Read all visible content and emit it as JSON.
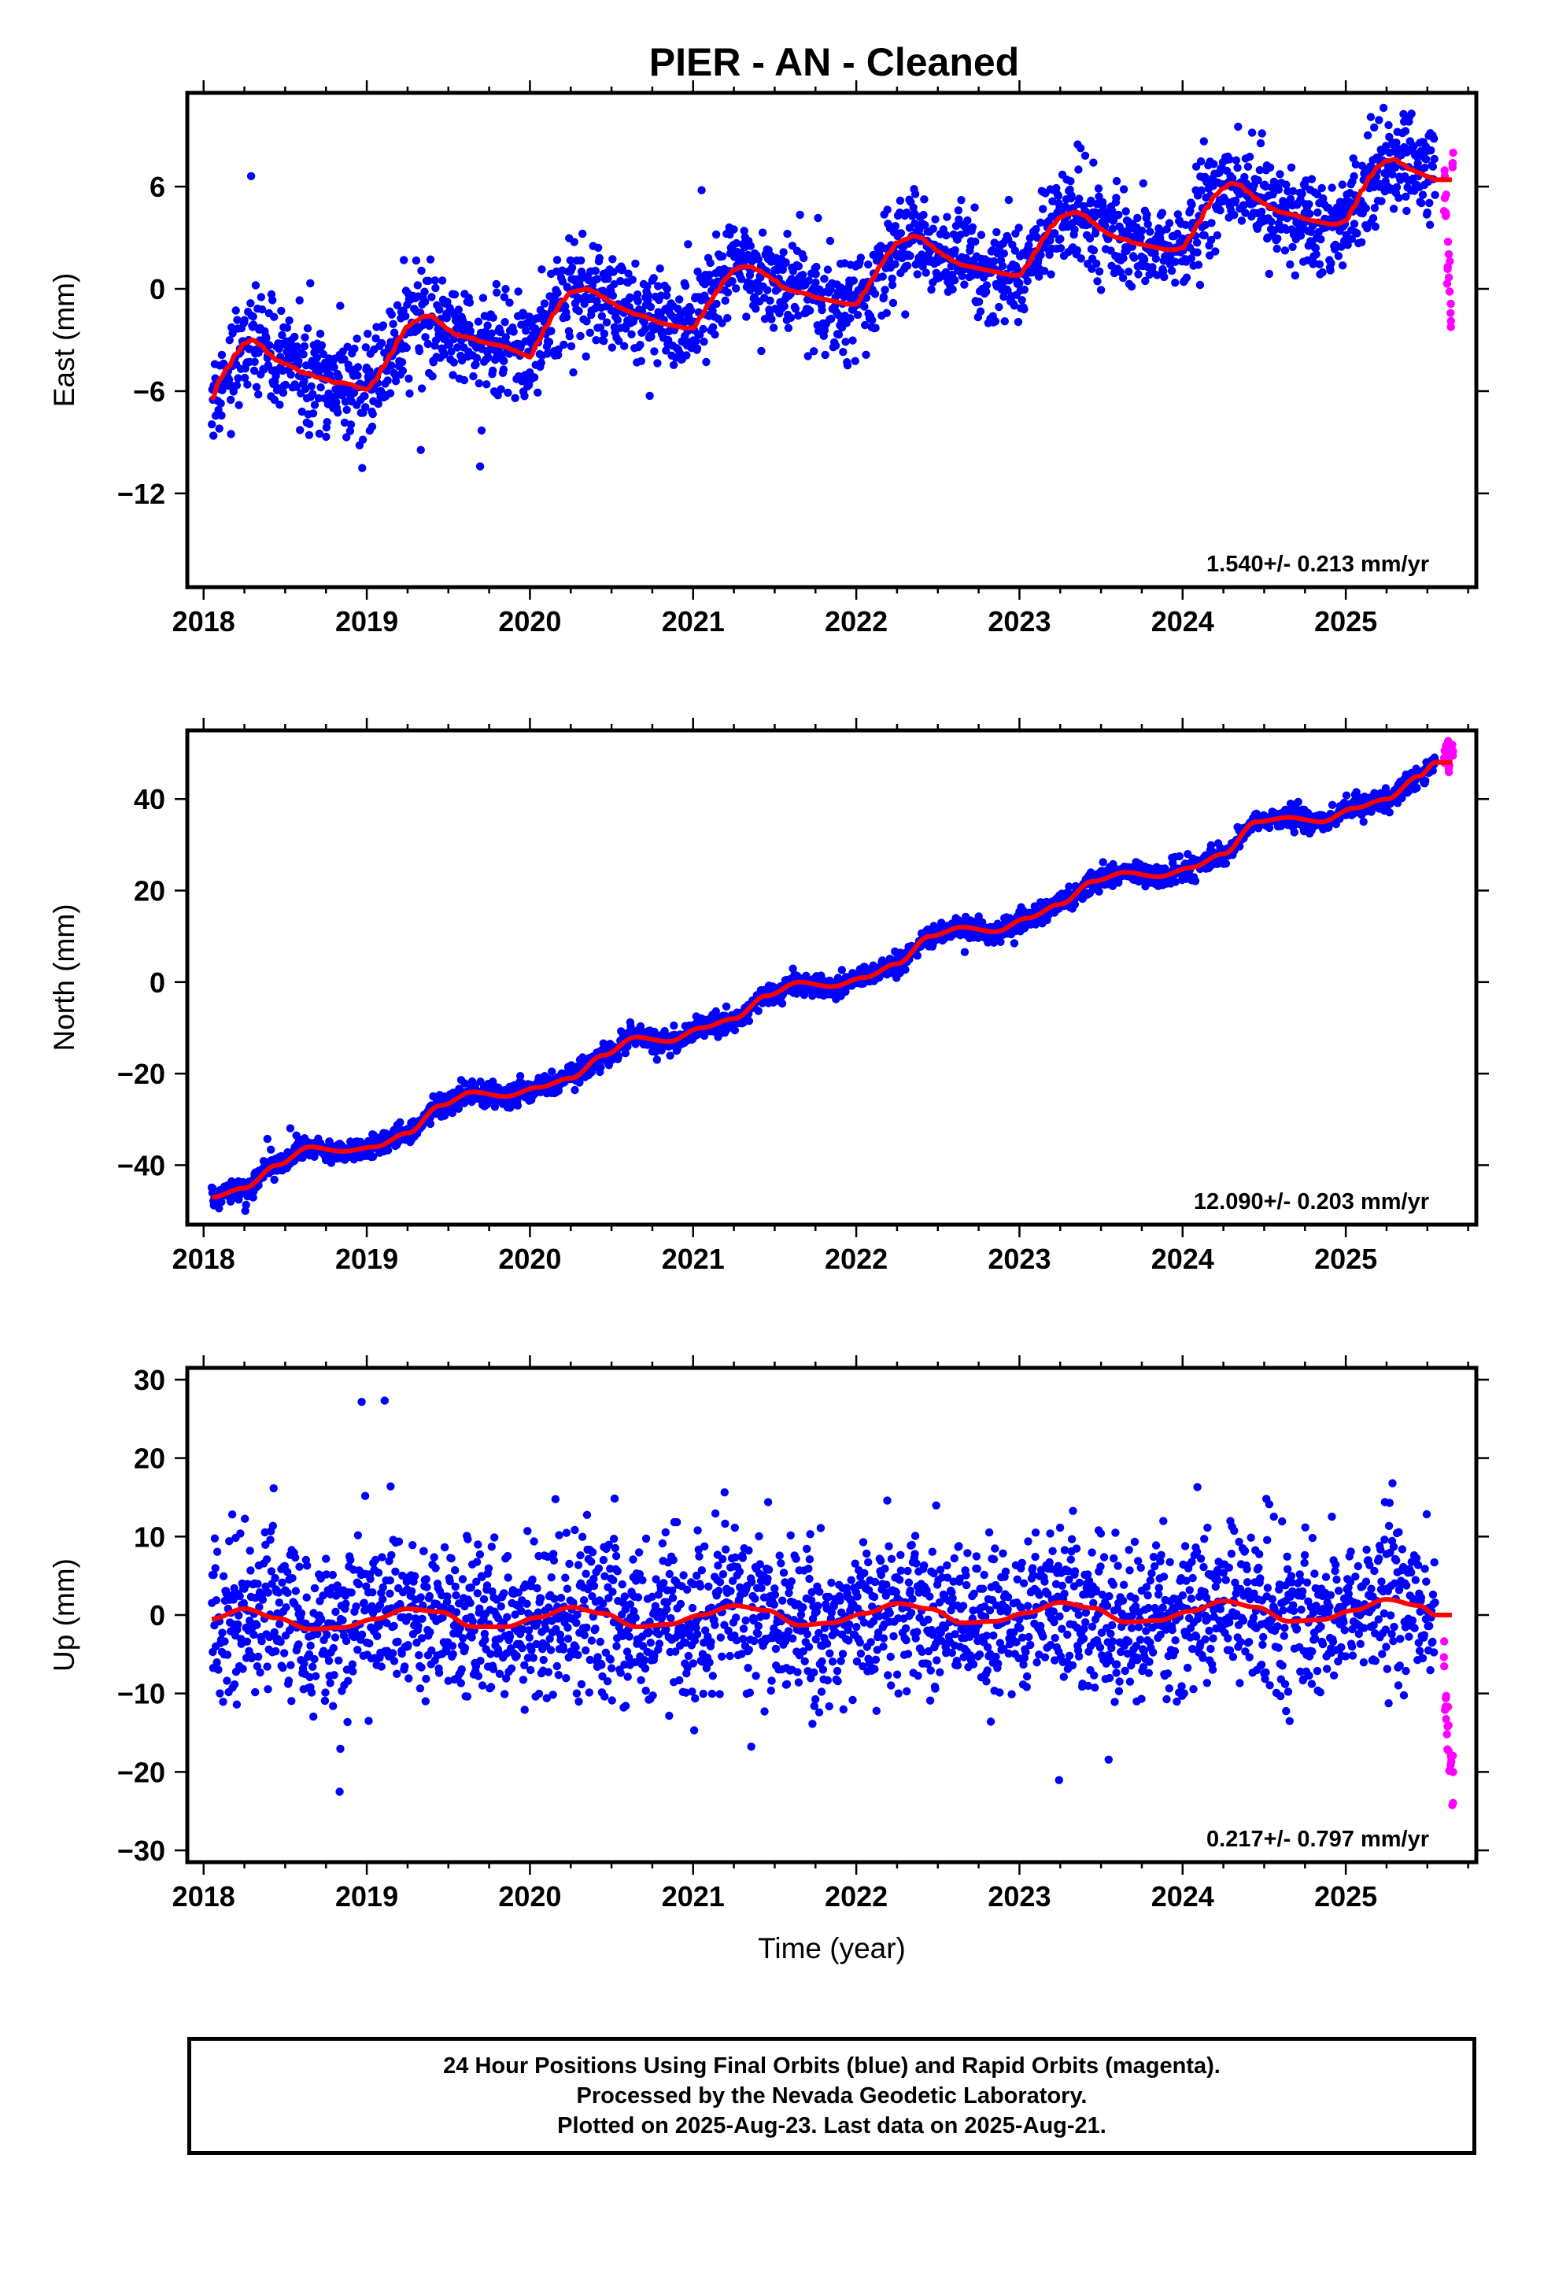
{
  "chart_data": [
    {
      "type": "scatter",
      "id": "east",
      "title": "PIER  - AN - Cleaned",
      "ylabel": "East (mm)",
      "xlim": [
        2017.9,
        2025.8
      ],
      "ylim": [
        -17.5,
        11.5
      ],
      "yticks": [
        -12,
        -6,
        0,
        6
      ],
      "xticks": [
        2018,
        2019,
        2020,
        2021,
        2022,
        2023,
        2024,
        2025
      ],
      "rate_label": "1.540+/- 0.213 mm/yr",
      "rate_mm_per_yr": 1.54,
      "series": [
        {
          "name": "Final Orbits",
          "color": "#0000ff",
          "x": [
            2018.05,
            2018.1,
            2018.15,
            2018.2,
            2018.25,
            2018.3,
            2018.35,
            2018.4,
            2018.45,
            2018.5,
            2018.55,
            2018.6,
            2018.65,
            2018.7,
            2018.75,
            2018.8,
            2018.85,
            2018.9,
            2018.95,
            2019.0,
            2019.05,
            2019.1,
            2019.15,
            2019.2,
            2019.25,
            2019.3,
            2019.35,
            2019.4,
            2019.45,
            2019.5,
            2019.55,
            2019.6,
            2019.65,
            2019.7,
            2019.75,
            2019.8,
            2019.85,
            2019.9,
            2019.95,
            2020.0,
            2020.05,
            2020.1,
            2020.15,
            2020.2,
            2020.25,
            2020.3,
            2020.35,
            2020.4,
            2020.45,
            2020.5,
            2020.55,
            2020.6,
            2020.65,
            2020.7,
            2020.75,
            2020.8,
            2020.85,
            2020.9,
            2020.95,
            2021.0,
            2021.05,
            2021.1,
            2021.15,
            2021.2,
            2021.25,
            2021.3,
            2021.35,
            2021.4,
            2021.45,
            2021.5,
            2021.55,
            2021.6,
            2021.65,
            2021.7,
            2021.75,
            2021.8,
            2021.85,
            2021.9,
            2021.95,
            2022.0,
            2022.05,
            2022.1,
            2022.15,
            2022.2,
            2022.25,
            2022.3,
            2022.35,
            2022.4,
            2022.45,
            2022.5,
            2022.55,
            2022.6,
            2022.65,
            2022.7,
            2022.75,
            2022.8,
            2022.85,
            2022.9,
            2022.95,
            2023.0,
            2023.05,
            2023.1,
            2023.15,
            2023.2,
            2023.25,
            2023.3,
            2023.35,
            2023.4,
            2023.45,
            2023.5,
            2023.55,
            2023.6,
            2023.65,
            2023.7,
            2023.75,
            2023.8,
            2023.85,
            2023.9,
            2023.95,
            2024.0,
            2024.05,
            2024.1,
            2024.15,
            2024.2,
            2024.25,
            2024.3,
            2024.35,
            2024.4,
            2024.45,
            2024.5,
            2024.55,
            2024.6,
            2024.65,
            2024.7,
            2024.75,
            2024.8,
            2024.85,
            2024.9,
            2024.95,
            2025.0,
            2025.05,
            2025.1,
            2025.15,
            2025.2,
            2025.25,
            2025.3,
            2025.35,
            2025.4,
            2025.45,
            2025.5,
            2025.55
          ],
          "y": [
            -6.5,
            -5.3,
            -4.6,
            -3.8,
            -3.2,
            -3.0,
            -3.3,
            -3.8,
            -4.2,
            -4.4,
            -4.6,
            -4.9,
            -5.0,
            -5.2,
            -5.3,
            -5.5,
            -5.5,
            -5.6,
            -5.8,
            -5.9,
            -5.4,
            -4.6,
            -3.8,
            -2.9,
            -2.2,
            -1.9,
            -1.6,
            -1.6,
            -2.0,
            -2.4,
            -2.7,
            -2.8,
            -2.9,
            -3.1,
            -3.2,
            -3.3,
            -3.4,
            -3.6,
            -3.8,
            -4.0,
            -3.1,
            -2.2,
            -1.4,
            -0.7,
            -0.2,
            -0.1,
            0.0,
            -0.2,
            -0.5,
            -0.8,
            -1.1,
            -1.3,
            -1.5,
            -1.6,
            -1.8,
            -2.0,
            -2.1,
            -2.2,
            -2.3,
            -2.3,
            -1.6,
            -0.8,
            -0.1,
            0.6,
            1.1,
            1.3,
            1.3,
            1.1,
            0.8,
            0.5,
            0.1,
            -0.1,
            -0.2,
            -0.3,
            -0.5,
            -0.6,
            -0.7,
            -0.8,
            -0.9,
            -0.9,
            -0.2,
            0.6,
            1.4,
            2.1,
            2.7,
            2.9,
            3.1,
            3.0,
            2.6,
            2.2,
            1.9,
            1.6,
            1.4,
            1.3,
            1.2,
            1.1,
            1.0,
            0.9,
            0.8,
            0.8,
            1.4,
            2.2,
            3.0,
            3.7,
            4.2,
            4.4,
            4.5,
            4.3,
            3.9,
            3.5,
            3.2,
            3.0,
            2.9,
            2.7,
            2.6,
            2.5,
            2.4,
            2.3,
            2.3,
            2.4,
            3.1,
            3.9,
            4.8,
            5.5,
            5.9,
            6.2,
            6.1,
            5.7,
            5.3,
            5.0,
            4.7,
            4.5,
            4.4,
            4.3,
            4.1,
            4.0,
            3.9,
            3.8,
            3.8,
            4.0,
            4.8,
            5.8,
            6.6,
            7.2,
            7.5,
            7.6,
            7.3,
            7.0,
            6.8,
            6.6,
            6.4
          ]
        },
        {
          "name": "Rapid Orbits",
          "color": "#ff00ff",
          "x": [
            2025.6,
            2025.61,
            2025.62,
            2025.63,
            2025.64,
            2025.65
          ],
          "y": [
            6.5,
            4.0,
            2.0,
            1.0,
            -1.0,
            7.0
          ]
        }
      ],
      "fit": {
        "name": "Model",
        "color": "#ff0000"
      }
    },
    {
      "type": "scatter",
      "id": "north",
      "ylabel": "North (mm)",
      "xlim": [
        2017.9,
        2025.8
      ],
      "ylim": [
        -53,
        55
      ],
      "yticks": [
        -40,
        -20,
        0,
        20,
        40
      ],
      "xticks": [
        2018,
        2019,
        2020,
        2021,
        2022,
        2023,
        2024,
        2025
      ],
      "rate_label": "12.090+/- 0.203 mm/yr",
      "rate_mm_per_yr": 12.09,
      "series": [
        {
          "name": "Final Orbits",
          "color": "#0000ff",
          "x": [
            2018.05,
            2018.25,
            2018.45,
            2018.65,
            2018.85,
            2019.05,
            2019.25,
            2019.45,
            2019.65,
            2019.85,
            2020.05,
            2020.25,
            2020.45,
            2020.65,
            2020.85,
            2021.05,
            2021.25,
            2021.45,
            2021.65,
            2021.85,
            2022.05,
            2022.25,
            2022.45,
            2022.65,
            2022.85,
            2023.05,
            2023.25,
            2023.45,
            2023.65,
            2023.85,
            2024.05,
            2024.25,
            2024.45,
            2024.65,
            2024.85,
            2025.05,
            2025.25,
            2025.45,
            2025.55
          ],
          "y": [
            -47,
            -45,
            -40,
            -36,
            -37,
            -36,
            -33,
            -27,
            -24,
            -25,
            -23,
            -21,
            -16,
            -12,
            -13,
            -10,
            -8,
            -3,
            0,
            -1,
            1,
            4,
            10,
            12,
            11,
            14,
            17,
            22,
            24,
            23,
            25,
            28,
            35,
            36,
            35,
            38,
            40,
            45,
            48
          ]
        },
        {
          "name": "Rapid Orbits",
          "color": "#ff00ff",
          "x": [
            2025.6,
            2025.61,
            2025.62,
            2025.63,
            2025.64,
            2025.65
          ],
          "y": [
            49,
            51,
            52,
            47,
            50,
            51
          ]
        }
      ],
      "fit": {
        "name": "Model",
        "color": "#ff0000"
      }
    },
    {
      "type": "scatter",
      "id": "up",
      "ylabel": "Up (mm)",
      "xlabel": "Time (year)",
      "xlim": [
        2017.9,
        2025.8
      ],
      "ylim": [
        -31.5,
        31.5
      ],
      "yticks": [
        -30,
        -20,
        -10,
        0,
        10,
        20,
        30
      ],
      "xticks": [
        2018,
        2019,
        2020,
        2021,
        2022,
        2023,
        2024,
        2025
      ],
      "rate_label": "0.217+/- 0.797 mm/yr",
      "rate_mm_per_yr": 0.217,
      "series": [
        {
          "name": "Final Orbits",
          "color": "#0000ff",
          "x": [
            2018.05,
            2018.25,
            2018.45,
            2018.65,
            2018.85,
            2019.05,
            2019.25,
            2019.45,
            2019.65,
            2019.85,
            2020.05,
            2020.25,
            2020.45,
            2020.65,
            2020.85,
            2021.05,
            2021.25,
            2021.45,
            2021.65,
            2021.85,
            2022.05,
            2022.25,
            2022.45,
            2022.65,
            2022.85,
            2023.05,
            2023.25,
            2023.45,
            2023.65,
            2023.85,
            2024.05,
            2024.25,
            2024.45,
            2024.65,
            2024.85,
            2025.05,
            2025.25,
            2025.45,
            2025.55
          ],
          "y": [
            -0.5,
            0.8,
            -0.4,
            -1.8,
            -1.6,
            -0.5,
            0.8,
            0.4,
            -1.5,
            -1.5,
            -0.3,
            1.0,
            0.2,
            -1.5,
            -1.2,
            0.0,
            1.2,
            0.6,
            -1.3,
            -1.0,
            0.2,
            1.5,
            0.8,
            -1.0,
            -0.8,
            0.3,
            1.6,
            0.9,
            -0.9,
            -0.7,
            0.5,
            1.8,
            1.0,
            -0.8,
            -0.6,
            0.6,
            2.0,
            1.2,
            0.0
          ]
        },
        {
          "name": "Rapid Orbits",
          "color": "#ff00ff",
          "x": [
            2025.6,
            2025.61,
            2025.62,
            2025.63,
            2025.64,
            2025.65
          ],
          "y": [
            -8,
            -12,
            -16,
            -18,
            -20,
            -22
          ]
        }
      ],
      "fit": {
        "name": "Model",
        "color": "#ff0000"
      }
    }
  ],
  "footer": {
    "line1": "24 Hour Positions Using Final Orbits (blue) and Rapid Orbits (magenta).",
    "line2": "Processed by the Nevada Geodetic Laboratory.",
    "line3": "Plotted on 2025-Aug-23. Last data on 2025-Aug-21."
  }
}
